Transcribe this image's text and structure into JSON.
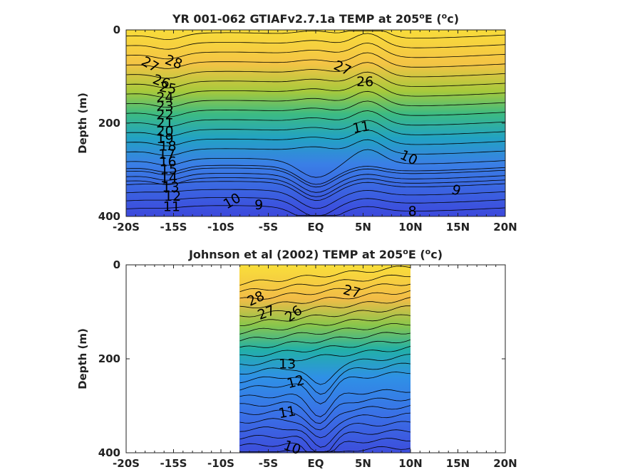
{
  "chart_data": [
    {
      "type": "contour",
      "title": "YR 001-062 GTIAFv2.7.1a TEMP at 205",
      "title_deg": "o",
      "title_unit_prefix": "E (",
      "title_unit_deg": "o",
      "title_unit_suffix": "c)",
      "ylabel": "Depth (m)",
      "xlim": [
        -20,
        20
      ],
      "ylim": [
        0,
        400
      ],
      "y_reversed": true,
      "x_ticks": [
        "-20S",
        "-15S",
        "-10S",
        "-5S",
        "EQ",
        "5N",
        "10N",
        "15N",
        "20N"
      ],
      "x_tick_values": [
        -20,
        -15,
        -10,
        -5,
        0,
        5,
        10,
        15,
        20
      ],
      "y_ticks": [
        "0",
        "200",
        "400"
      ],
      "y_tick_values": [
        0,
        200,
        400
      ],
      "data_extent": [
        -20,
        20
      ],
      "contour_labels": [
        {
          "text": "28",
          "lon": -15.0,
          "depth": 70,
          "angle": 20
        },
        {
          "text": "27",
          "lon": -17.5,
          "depth": 75,
          "angle": 30
        },
        {
          "text": "26",
          "lon": -16.3,
          "depth": 112,
          "angle": 20
        },
        {
          "text": "25",
          "lon": -15.6,
          "depth": 126,
          "angle": 10
        },
        {
          "text": "24",
          "lon": -15.9,
          "depth": 146,
          "angle": 0
        },
        {
          "text": "23",
          "lon": -15.9,
          "depth": 165,
          "angle": 0
        },
        {
          "text": "22",
          "lon": -15.9,
          "depth": 183,
          "angle": 0
        },
        {
          "text": "21",
          "lon": -15.9,
          "depth": 201,
          "angle": 0
        },
        {
          "text": "20",
          "lon": -15.9,
          "depth": 218,
          "angle": 0
        },
        {
          "text": "19",
          "lon": -15.9,
          "depth": 234,
          "angle": 0
        },
        {
          "text": "18",
          "lon": -15.6,
          "depth": 250,
          "angle": 0
        },
        {
          "text": "17",
          "lon": -15.7,
          "depth": 268,
          "angle": 0
        },
        {
          "text": "16",
          "lon": -15.6,
          "depth": 284,
          "angle": 0
        },
        {
          "text": "15",
          "lon": -15.5,
          "depth": 300,
          "angle": 0
        },
        {
          "text": "14",
          "lon": -15.5,
          "depth": 318,
          "angle": 0
        },
        {
          "text": "13",
          "lon": -15.3,
          "depth": 338,
          "angle": 0
        },
        {
          "text": "12",
          "lon": -15.1,
          "depth": 358,
          "angle": 0
        },
        {
          "text": "11",
          "lon": -15.2,
          "depth": 380,
          "angle": 0
        },
        {
          "text": "10",
          "lon": -8.8,
          "depth": 368,
          "angle": -30
        },
        {
          "text": "9",
          "lon": -6.0,
          "depth": 376,
          "angle": 0
        },
        {
          "text": "27",
          "lon": 2.8,
          "depth": 83,
          "angle": 25
        },
        {
          "text": "26",
          "lon": 5.2,
          "depth": 112,
          "angle": 0
        },
        {
          "text": "11",
          "lon": 4.8,
          "depth": 210,
          "angle": -10
        },
        {
          "text": "10",
          "lon": 9.8,
          "depth": 275,
          "angle": 25
        },
        {
          "text": "9",
          "lon": 14.8,
          "depth": 345,
          "angle": 20
        },
        {
          "text": "8",
          "lon": 10.2,
          "depth": 390,
          "angle": 0
        }
      ]
    },
    {
      "type": "contour",
      "title": "Johnson et al (2002) TEMP at 205",
      "title_deg": "o",
      "title_unit_prefix": "E (",
      "title_unit_deg": "o",
      "title_unit_suffix": "c)",
      "ylabel": "Depth (m)",
      "xlim": [
        -20,
        20
      ],
      "ylim": [
        0,
        400
      ],
      "y_reversed": true,
      "x_ticks": [
        "-20S",
        "-15S",
        "-10S",
        "-5S",
        "EQ",
        "5N",
        "10N",
        "15N",
        "20N"
      ],
      "x_tick_values": [
        -20,
        -15,
        -10,
        -5,
        0,
        5,
        10,
        15,
        20
      ],
      "y_ticks": [
        "0",
        "200",
        "400"
      ],
      "y_tick_values": [
        0,
        200,
        400
      ],
      "data_extent": [
        -8,
        10
      ],
      "contour_labels": [
        {
          "text": "28",
          "lon": -6.3,
          "depth": 73,
          "angle": -25
        },
        {
          "text": "27",
          "lon": -5.2,
          "depth": 103,
          "angle": -20
        },
        {
          "text": "26",
          "lon": -2.3,
          "depth": 105,
          "angle": -35
        },
        {
          "text": "27",
          "lon": 3.8,
          "depth": 58,
          "angle": 15
        },
        {
          "text": "13",
          "lon": -3.0,
          "depth": 212,
          "angle": 0
        },
        {
          "text": "12",
          "lon": -2.1,
          "depth": 250,
          "angle": -15
        },
        {
          "text": "11",
          "lon": -3.0,
          "depth": 315,
          "angle": -10
        },
        {
          "text": "10",
          "lon": -2.5,
          "depth": 390,
          "angle": 20
        }
      ]
    }
  ],
  "colors": {
    "warm": "#f5d33a",
    "mid": "#4cc27a",
    "cool": "#3d4cdb",
    "contour": "#000000"
  }
}
